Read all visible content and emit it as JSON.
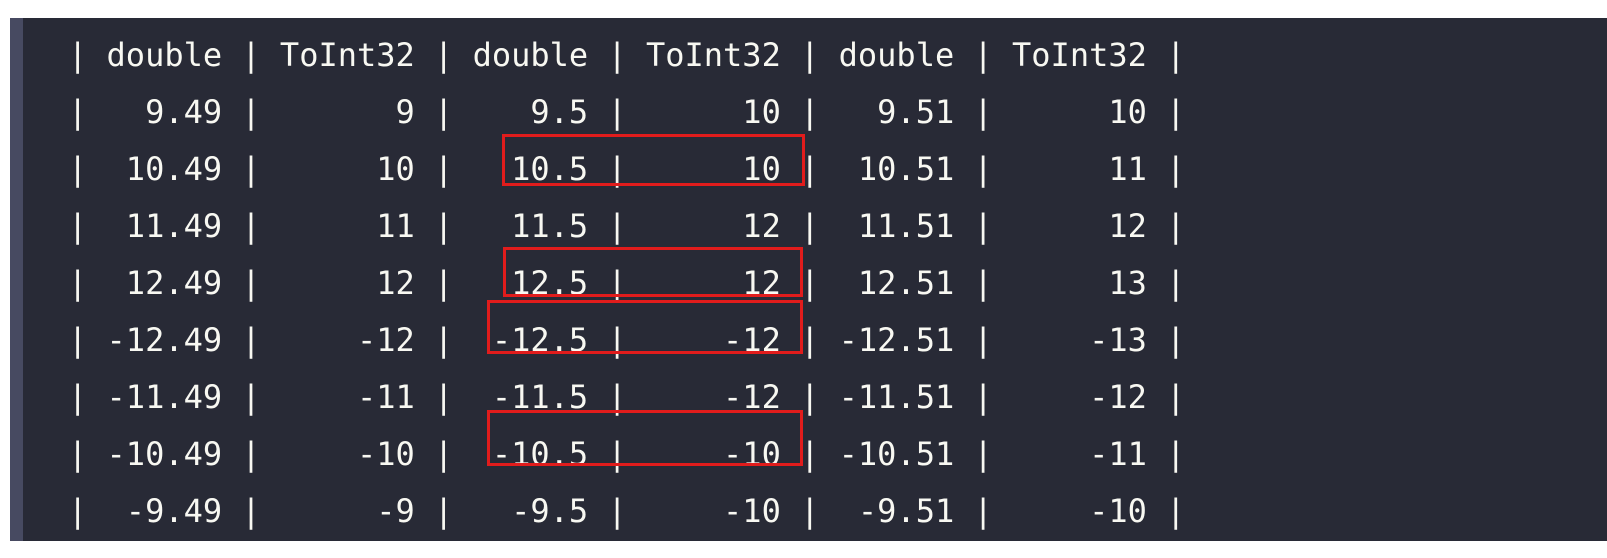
{
  "code_block": {
    "lines": [
      "| double | ToInt32 | double | ToInt32 | double | ToInt32 |",
      "|   9.49 |       9 |    9.5 |      10 |   9.51 |      10 |",
      "|  10.49 |      10 |   10.5 |      10 |  10.51 |      11 |",
      "|  11.49 |      11 |   11.5 |      12 |  11.51 |      12 |",
      "|  12.49 |      12 |   12.5 |      12 |  12.51 |      13 |",
      "| -12.49 |     -12 |  -12.5 |     -12 | -12.51 |     -13 |",
      "| -11.49 |     -11 |  -11.5 |     -12 | -11.51 |     -12 |",
      "| -10.49 |     -10 |  -10.5 |     -10 | -10.51 |     -11 |",
      "|  -9.49 |      -9 |   -9.5 |     -10 |  -9.51 |     -10 |"
    ]
  },
  "highlight_color": "#e11c1c"
}
